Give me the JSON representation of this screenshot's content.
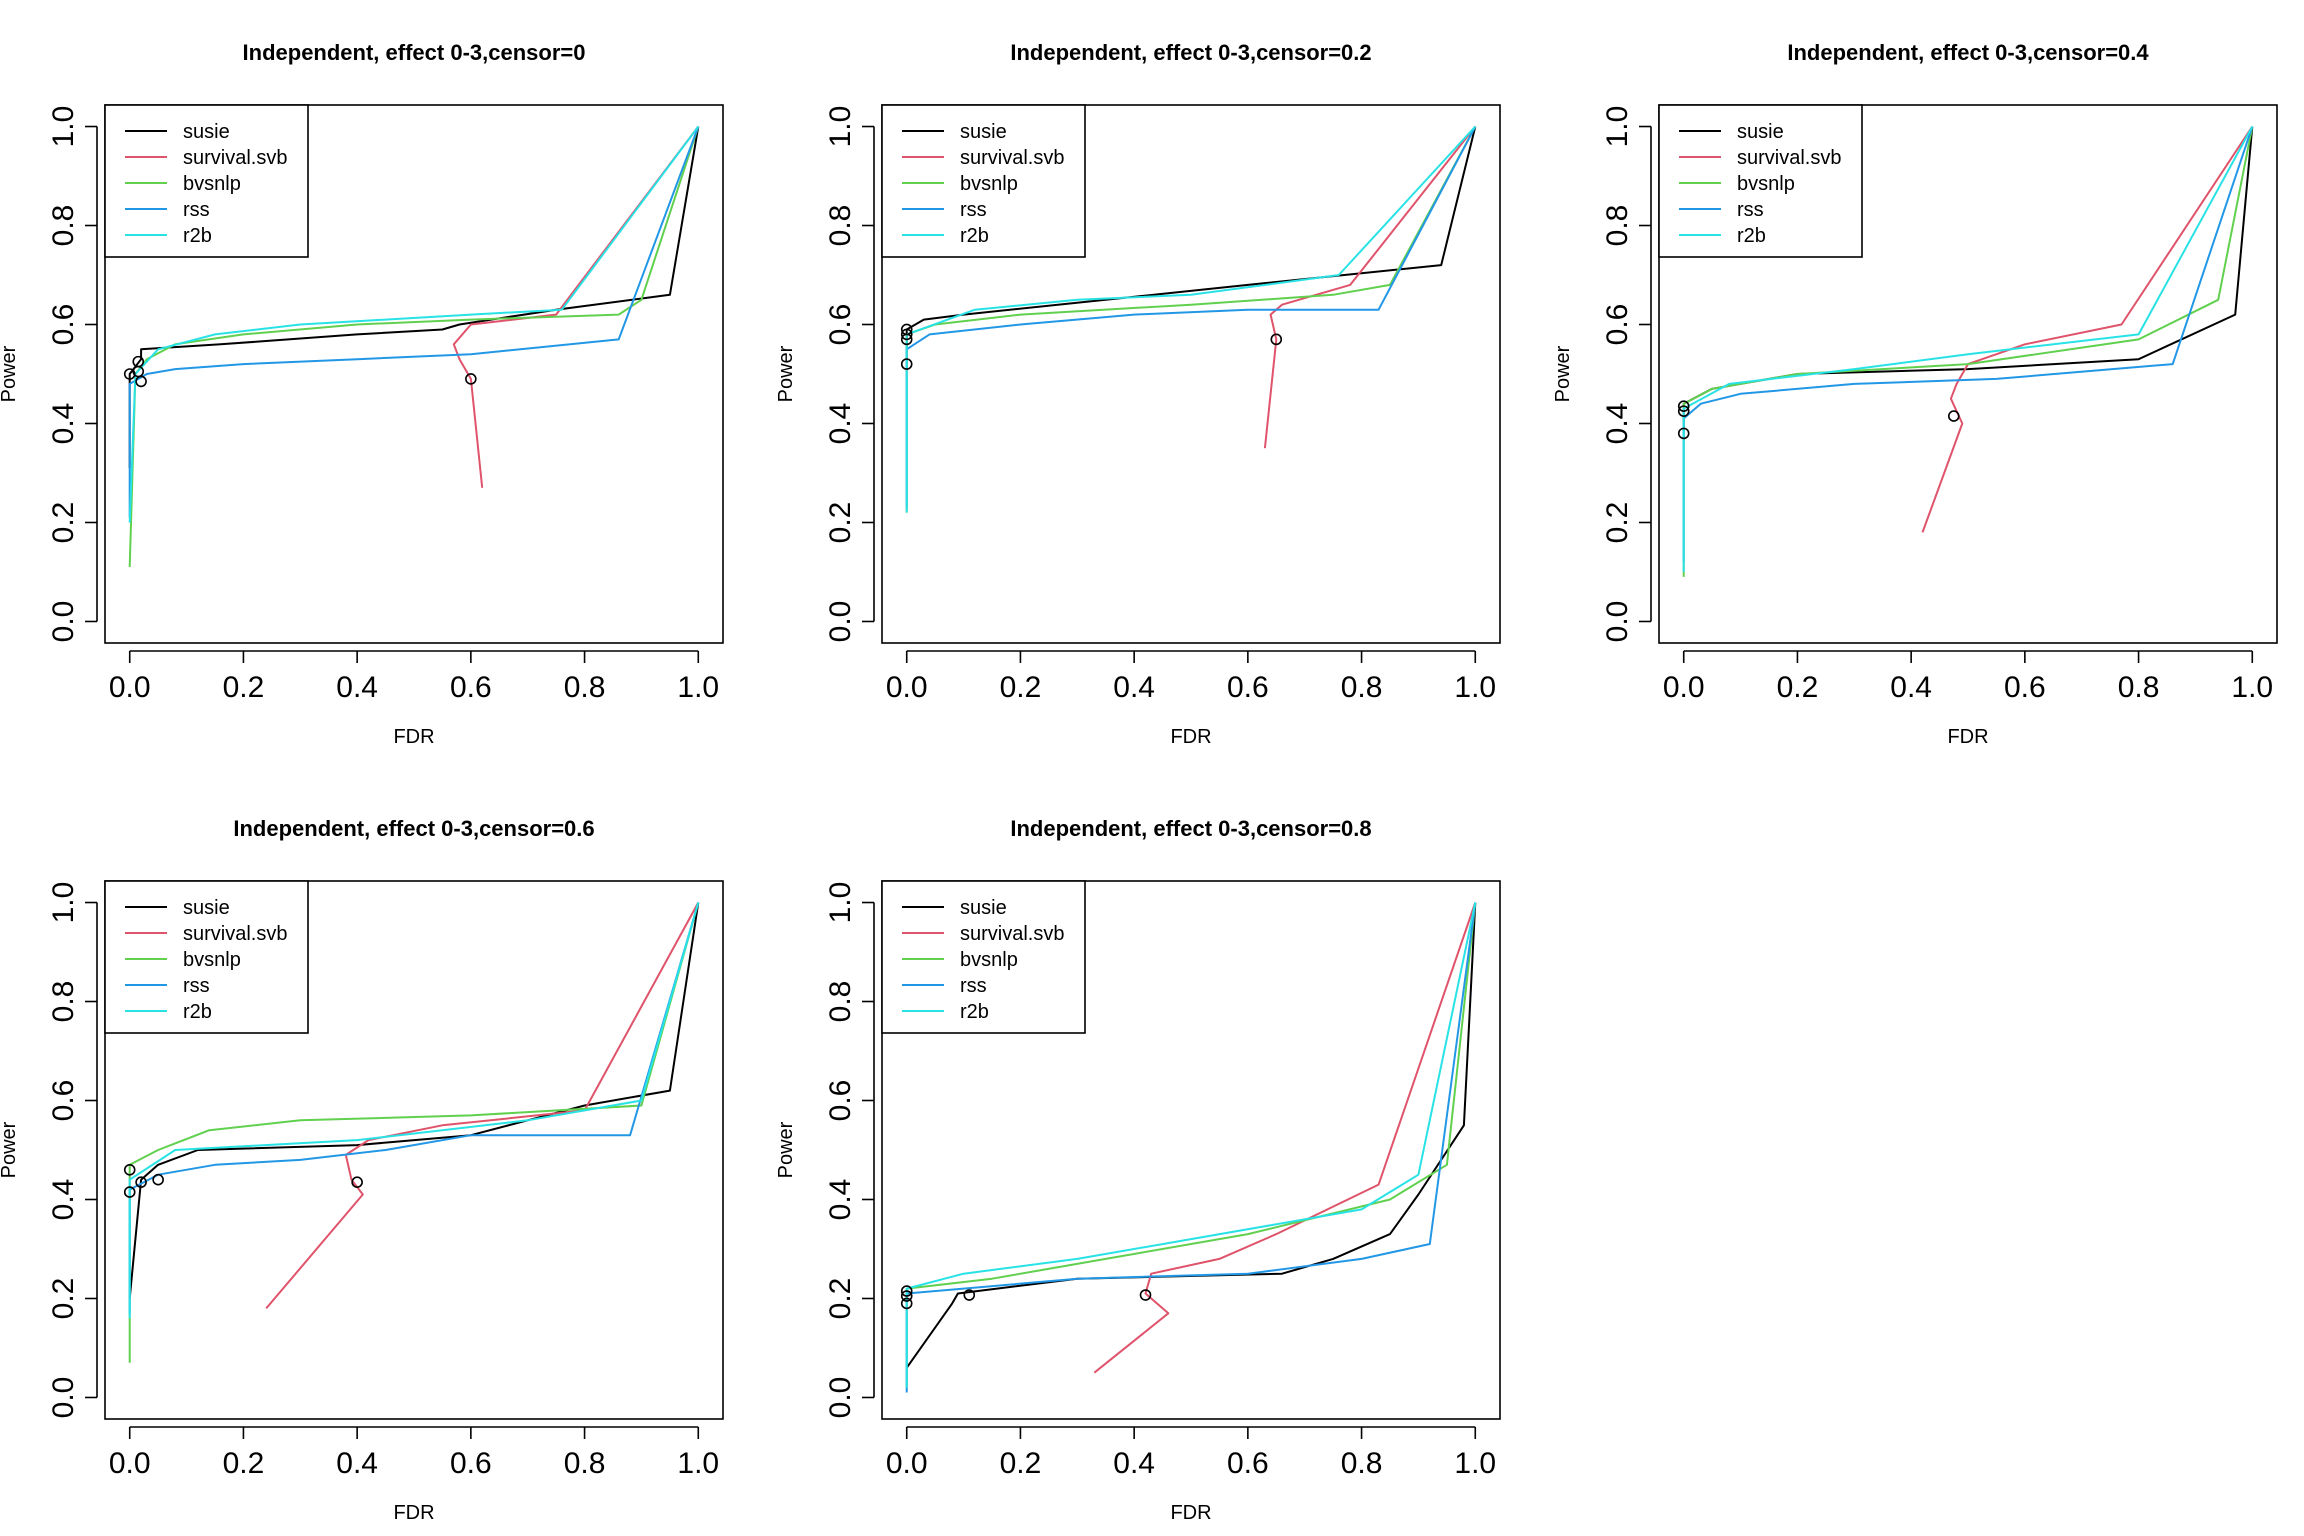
{
  "colors": {
    "susie": "#000000",
    "survival.svb": "#DF536B",
    "bvsnlp": "#61D04F",
    "rss": "#2297E6",
    "r2b": "#28E2E5"
  },
  "chart_data": [
    {
      "type": "line",
      "title": "Independent, effect 0-3,censor=0",
      "xlabel": "FDR",
      "ylabel": "Power",
      "xlim": [
        0,
        1
      ],
      "ylim": [
        0,
        1
      ],
      "xticks": [
        "0.0",
        "0.2",
        "0.4",
        "0.6",
        "0.8",
        "1.0"
      ],
      "yticks": [
        "0.0",
        "0.2",
        "0.4",
        "0.6",
        "0.8",
        "1.0"
      ],
      "grid": false,
      "legend": {
        "placement": "top-left",
        "entries": [
          "susie",
          "survival.svb",
          "bvsnlp",
          "rss",
          "r2b"
        ]
      },
      "series": [
        {
          "name": "susie",
          "x": [
            0.0,
            0.0,
            0.02,
            0.02,
            0.16,
            0.4,
            0.55,
            0.58,
            0.75,
            0.95,
            1.0
          ],
          "y": [
            0.31,
            0.5,
            0.53,
            0.55,
            0.56,
            0.58,
            0.59,
            0.6,
            0.63,
            0.66,
            1.0
          ]
        },
        {
          "name": "survival.svb",
          "x": [
            0.62,
            0.6,
            0.58,
            0.57,
            0.6,
            0.75,
            1.0
          ],
          "y": [
            0.27,
            0.49,
            0.53,
            0.56,
            0.6,
            0.62,
            1.0
          ]
        },
        {
          "name": "bvsnlp",
          "x": [
            0.0,
            0.01,
            0.03,
            0.08,
            0.2,
            0.4,
            0.6,
            0.86,
            0.9,
            1.0
          ],
          "y": [
            0.11,
            0.5,
            0.53,
            0.56,
            0.58,
            0.6,
            0.61,
            0.62,
            0.65,
            1.0
          ]
        },
        {
          "name": "rss",
          "x": [
            0.0,
            0.0,
            0.03,
            0.08,
            0.2,
            0.4,
            0.6,
            0.86,
            1.0
          ],
          "y": [
            0.21,
            0.48,
            0.5,
            0.51,
            0.52,
            0.53,
            0.54,
            0.57,
            1.0
          ]
        },
        {
          "name": "r2b",
          "x": [
            0.0,
            0.01,
            0.05,
            0.15,
            0.3,
            0.6,
            0.76,
            1.0
          ],
          "y": [
            0.2,
            0.5,
            0.55,
            0.58,
            0.6,
            0.62,
            0.63,
            1.0
          ]
        }
      ],
      "markers": [
        {
          "x": 0.0,
          "y": 0.5
        },
        {
          "x": 0.015,
          "y": 0.505
        },
        {
          "x": 0.015,
          "y": 0.525
        },
        {
          "x": 0.02,
          "y": 0.485
        },
        {
          "x": 0.6,
          "y": 0.49
        }
      ]
    },
    {
      "type": "line",
      "title": "Independent, effect 0-3,censor=0.2",
      "xlabel": "FDR",
      "ylabel": "Power",
      "xlim": [
        0,
        1
      ],
      "ylim": [
        0,
        1
      ],
      "xticks": [
        "0.0",
        "0.2",
        "0.4",
        "0.6",
        "0.8",
        "1.0"
      ],
      "yticks": [
        "0.0",
        "0.2",
        "0.4",
        "0.6",
        "0.8",
        "1.0"
      ],
      "grid": false,
      "legend": {
        "placement": "top-left",
        "entries": [
          "susie",
          "survival.svb",
          "bvsnlp",
          "rss",
          "r2b"
        ]
      },
      "series": [
        {
          "name": "susie",
          "x": [
            0.0,
            0.0,
            0.03,
            0.1,
            0.35,
            0.6,
            0.94,
            1.0
          ],
          "y": [
            0.52,
            0.59,
            0.61,
            0.62,
            0.65,
            0.68,
            0.72,
            1.0
          ]
        },
        {
          "name": "survival.svb",
          "x": [
            0.63,
            0.65,
            0.64,
            0.66,
            0.78,
            1.0
          ],
          "y": [
            0.35,
            0.57,
            0.62,
            0.64,
            0.68,
            1.0
          ]
        },
        {
          "name": "bvsnlp",
          "x": [
            0.0,
            0.0,
            0.05,
            0.2,
            0.5,
            0.75,
            0.85,
            1.0
          ],
          "y": [
            0.22,
            0.58,
            0.6,
            0.62,
            0.64,
            0.66,
            0.68,
            1.0
          ]
        },
        {
          "name": "rss",
          "x": [
            0.0,
            0.0,
            0.04,
            0.2,
            0.4,
            0.6,
            0.83,
            1.0
          ],
          "y": [
            0.23,
            0.55,
            0.58,
            0.6,
            0.62,
            0.63,
            0.63,
            1.0
          ]
        },
        {
          "name": "r2b",
          "x": [
            0.0,
            0.0,
            0.12,
            0.3,
            0.5,
            0.76,
            1.0
          ],
          "y": [
            0.22,
            0.58,
            0.63,
            0.65,
            0.66,
            0.7,
            1.0
          ]
        }
      ],
      "markers": [
        {
          "x": 0.0,
          "y": 0.52
        },
        {
          "x": 0.0,
          "y": 0.57
        },
        {
          "x": 0.0,
          "y": 0.58
        },
        {
          "x": 0.0,
          "y": 0.59
        },
        {
          "x": 0.65,
          "y": 0.57
        }
      ]
    },
    {
      "type": "line",
      "title": "Independent, effect 0-3,censor=0.4",
      "xlabel": "FDR",
      "ylabel": "Power",
      "xlim": [
        0,
        1
      ],
      "ylim": [
        0,
        1
      ],
      "xticks": [
        "0.0",
        "0.2",
        "0.4",
        "0.6",
        "0.8",
        "1.0"
      ],
      "yticks": [
        "0.0",
        "0.2",
        "0.4",
        "0.6",
        "0.8",
        "1.0"
      ],
      "grid": false,
      "legend": {
        "placement": "top-left",
        "entries": [
          "susie",
          "survival.svb",
          "bvsnlp",
          "rss",
          "r2b"
        ]
      },
      "series": [
        {
          "name": "susie",
          "x": [
            0.0,
            0.0,
            0.05,
            0.2,
            0.5,
            0.8,
            0.97,
            1.0
          ],
          "y": [
            0.38,
            0.44,
            0.47,
            0.5,
            0.51,
            0.53,
            0.62,
            1.0
          ]
        },
        {
          "name": "survival.svb",
          "x": [
            0.42,
            0.49,
            0.47,
            0.48,
            0.5,
            0.6,
            0.77,
            1.0
          ],
          "y": [
            0.18,
            0.4,
            0.45,
            0.48,
            0.52,
            0.56,
            0.6,
            1.0
          ]
        },
        {
          "name": "bvsnlp",
          "x": [
            0.0,
            0.0,
            0.05,
            0.2,
            0.5,
            0.8,
            0.94,
            1.0
          ],
          "y": [
            0.09,
            0.44,
            0.47,
            0.5,
            0.52,
            0.57,
            0.65,
            1.0
          ]
        },
        {
          "name": "rss",
          "x": [
            0.0,
            0.0,
            0.03,
            0.1,
            0.3,
            0.55,
            0.86,
            1.0
          ],
          "y": [
            0.12,
            0.41,
            0.44,
            0.46,
            0.48,
            0.49,
            0.52,
            1.0
          ]
        },
        {
          "name": "r2b",
          "x": [
            0.0,
            0.0,
            0.08,
            0.3,
            0.5,
            0.8,
            1.0
          ],
          "y": [
            0.1,
            0.43,
            0.48,
            0.51,
            0.54,
            0.58,
            1.0
          ]
        }
      ],
      "markers": [
        {
          "x": 0.0,
          "y": 0.38
        },
        {
          "x": 0.0,
          "y": 0.425
        },
        {
          "x": 0.0,
          "y": 0.435
        },
        {
          "x": 0.475,
          "y": 0.415
        }
      ]
    },
    {
      "type": "line",
      "title": "Independent, effect 0-3,censor=0.6",
      "xlabel": "FDR",
      "ylabel": "Power",
      "xlim": [
        0,
        1
      ],
      "ylim": [
        0,
        1
      ],
      "xticks": [
        "0.0",
        "0.2",
        "0.4",
        "0.6",
        "0.8",
        "1.0"
      ],
      "yticks": [
        "0.0",
        "0.2",
        "0.4",
        "0.6",
        "0.8",
        "1.0"
      ],
      "grid": false,
      "legend": {
        "placement": "top-left",
        "entries": [
          "susie",
          "survival.svb",
          "bvsnlp",
          "rss",
          "r2b"
        ]
      },
      "series": [
        {
          "name": "susie",
          "x": [
            0.0,
            0.02,
            0.05,
            0.12,
            0.4,
            0.6,
            0.7,
            0.8,
            0.95,
            1.0
          ],
          "y": [
            0.2,
            0.44,
            0.47,
            0.5,
            0.51,
            0.53,
            0.56,
            0.59,
            0.62,
            1.0
          ]
        },
        {
          "name": "survival.svb",
          "x": [
            0.24,
            0.41,
            0.39,
            0.38,
            0.42,
            0.55,
            0.8,
            1.0
          ],
          "y": [
            0.18,
            0.41,
            0.44,
            0.49,
            0.52,
            0.55,
            0.58,
            1.0
          ]
        },
        {
          "name": "bvsnlp",
          "x": [
            0.0,
            0.0,
            0.05,
            0.14,
            0.3,
            0.6,
            0.9,
            1.0
          ],
          "y": [
            0.07,
            0.47,
            0.5,
            0.54,
            0.56,
            0.57,
            0.59,
            1.0
          ]
        },
        {
          "name": "rss",
          "x": [
            0.0,
            0.0,
            0.05,
            0.15,
            0.3,
            0.45,
            0.6,
            0.88,
            1.0
          ],
          "y": [
            0.17,
            0.42,
            0.45,
            0.47,
            0.48,
            0.5,
            0.53,
            0.53,
            1.0
          ]
        },
        {
          "name": "r2b",
          "x": [
            0.0,
            0.0,
            0.08,
            0.4,
            0.7,
            0.9,
            1.0
          ],
          "y": [
            0.16,
            0.44,
            0.5,
            0.52,
            0.56,
            0.6,
            1.0
          ]
        }
      ],
      "markers": [
        {
          "x": 0.0,
          "y": 0.415
        },
        {
          "x": 0.0,
          "y": 0.46
        },
        {
          "x": 0.02,
          "y": 0.435
        },
        {
          "x": 0.05,
          "y": 0.44
        },
        {
          "x": 0.4,
          "y": 0.435
        }
      ]
    },
    {
      "type": "line",
      "title": "Independent, effect 0-3,censor=0.8",
      "xlabel": "FDR",
      "ylabel": "Power",
      "xlim": [
        0,
        1
      ],
      "ylim": [
        0,
        1
      ],
      "xticks": [
        "0.0",
        "0.2",
        "0.4",
        "0.6",
        "0.8",
        "1.0"
      ],
      "yticks": [
        "0.0",
        "0.2",
        "0.4",
        "0.6",
        "0.8",
        "1.0"
      ],
      "grid": false,
      "legend": {
        "placement": "top-left",
        "entries": [
          "susie",
          "survival.svb",
          "bvsnlp",
          "rss",
          "r2b"
        ]
      },
      "series": [
        {
          "name": "susie",
          "x": [
            0.0,
            0.08,
            0.09,
            0.3,
            0.66,
            0.75,
            0.85,
            0.9,
            0.98,
            1.0
          ],
          "y": [
            0.06,
            0.19,
            0.21,
            0.24,
            0.25,
            0.28,
            0.33,
            0.41,
            0.55,
            1.0
          ]
        },
        {
          "name": "survival.svb",
          "x": [
            0.33,
            0.46,
            0.42,
            0.43,
            0.55,
            0.65,
            0.83,
            1.0
          ],
          "y": [
            0.05,
            0.17,
            0.21,
            0.25,
            0.28,
            0.33,
            0.43,
            1.0
          ]
        },
        {
          "name": "bvsnlp",
          "x": [
            0.0,
            0.0,
            0.15,
            0.35,
            0.6,
            0.85,
            0.95,
            1.0
          ],
          "y": [
            0.02,
            0.22,
            0.24,
            0.28,
            0.33,
            0.4,
            0.47,
            1.0
          ]
        },
        {
          "name": "rss",
          "x": [
            0.0,
            0.0,
            0.1,
            0.3,
            0.6,
            0.8,
            0.92,
            1.0
          ],
          "y": [
            0.01,
            0.21,
            0.22,
            0.24,
            0.25,
            0.28,
            0.31,
            1.0
          ]
        },
        {
          "name": "r2b",
          "x": [
            0.0,
            0.0,
            0.1,
            0.3,
            0.5,
            0.8,
            0.9,
            1.0
          ],
          "y": [
            0.02,
            0.22,
            0.25,
            0.28,
            0.32,
            0.38,
            0.45,
            1.0
          ]
        }
      ],
      "markers": [
        {
          "x": 0.0,
          "y": 0.19
        },
        {
          "x": 0.0,
          "y": 0.205
        },
        {
          "x": 0.0,
          "y": 0.215
        },
        {
          "x": 0.11,
          "y": 0.207
        },
        {
          "x": 0.42,
          "y": 0.207
        }
      ]
    }
  ]
}
